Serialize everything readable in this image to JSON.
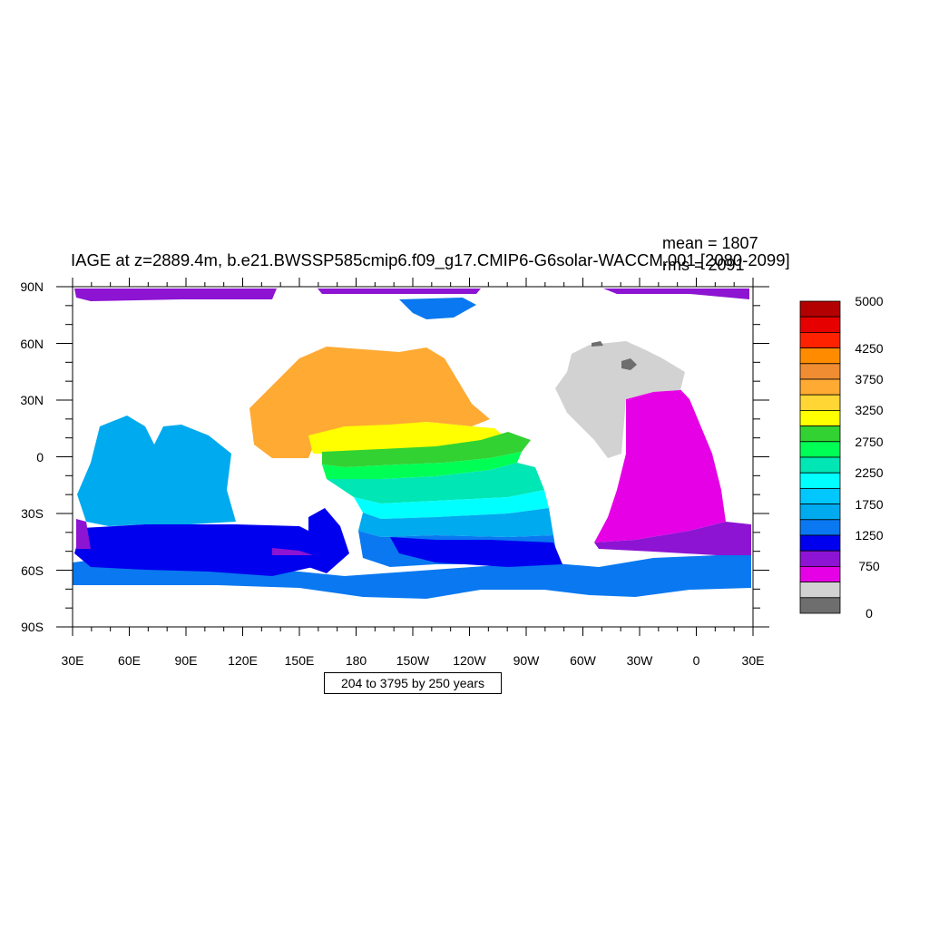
{
  "title": "IAGE at z=2889.4m, b.e21.BWSSP585cmip6.f09_g17.CMIP6-G6solar-WACCM.001 [2080-2099]",
  "stats": {
    "mean": "mean = 1807",
    "rms": "rms = 2091"
  },
  "range_note": "204 to 3795 by 250 years",
  "axes": {
    "lat_labels": [
      "90N",
      "60N",
      "30N",
      "0",
      "30S",
      "60S",
      "90S"
    ],
    "lon_labels": [
      "30E",
      "60E",
      "90E",
      "120E",
      "150E",
      "180",
      "150W",
      "120W",
      "90W",
      "60W",
      "30W",
      "0",
      "30E"
    ]
  },
  "colorbar": {
    "colors": [
      "#b30000",
      "#e60000",
      "#ff2200",
      "#ff8c00",
      "#f08c32",
      "#ffaa33",
      "#ffd633",
      "#ffff00",
      "#32d232",
      "#00ff55",
      "#00e6b4",
      "#00ffff",
      "#00c8ff",
      "#00aaee",
      "#0a78f0",
      "#0000ee",
      "#8c14d2",
      "#e600e6",
      "#d2d2d2",
      "#6e6e6e"
    ],
    "labels": [
      "5000",
      "4250",
      "3750",
      "3250",
      "2750",
      "2250",
      "1750",
      "1250",
      "750",
      "0"
    ]
  },
  "map_colors": {
    "land": "#ffffff",
    "arctic": "#8c14d2",
    "n_pacific": "#ffaa33",
    "eq_yellow": "#ffff00",
    "eq_green": "#32d232",
    "eq_green2": "#00ff55",
    "teal": "#00e6b4",
    "cyan": "#00ffff",
    "lightblue": "#00aaee",
    "midblue": "#0a78f0",
    "deepblue": "#0000ee",
    "purple": "#8c14d2",
    "magenta": "#e600e6",
    "gray": "#d2d2d2",
    "darkgray": "#6e6e6e",
    "greenland_blue": "#0a78f0"
  }
}
